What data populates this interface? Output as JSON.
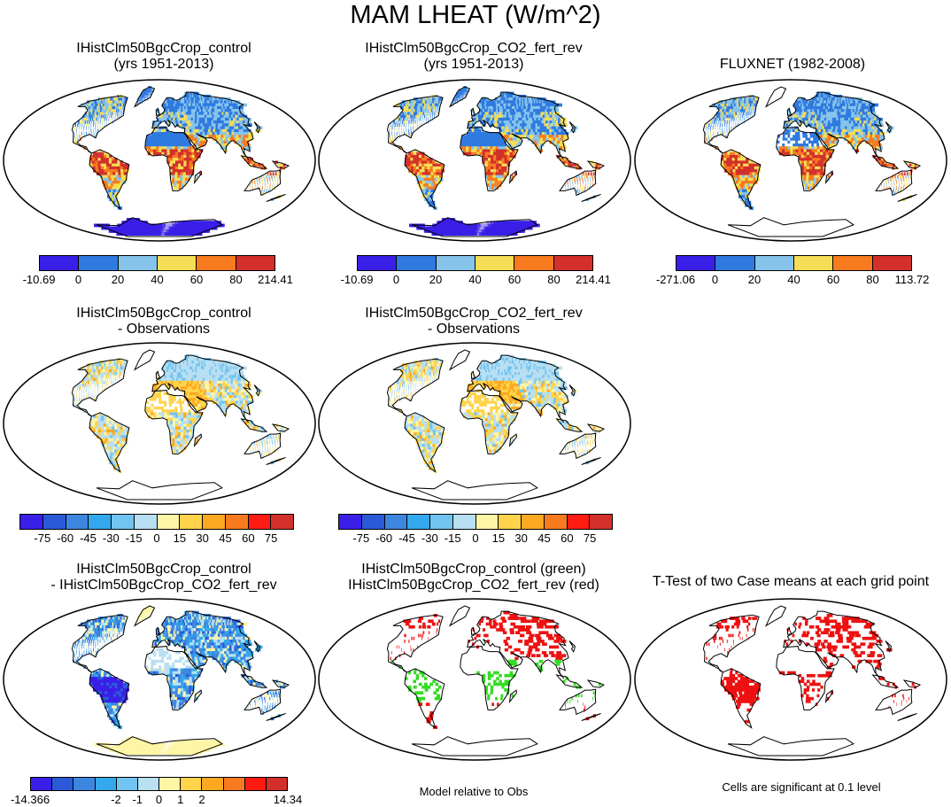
{
  "main_title": "MAM LHEAT (W/m^2)",
  "colors": {
    "abs_scale": [
      "#3a1fe8",
      "#2f7ae0",
      "#86c4ec",
      "#f5dd55",
      "#f77b1e",
      "#d3302b"
    ],
    "diff_scale": [
      "#3a1fe8",
      "#2b5ad8",
      "#3d86e0",
      "#34a8ec",
      "#72c4f0",
      "#b8dff2",
      "#fff5a6",
      "#ffd44a",
      "#fca921",
      "#f77b1e",
      "#ff1a12",
      "#d3302b"
    ],
    "cmp_scale": [
      "#3a1fe8",
      "#2b5ad8",
      "#3d86e0",
      "#34a8ec",
      "#72c4f0",
      "#b8dff2",
      "#fff5a6",
      "#ffd44a",
      "#fca921",
      "#f77b1e",
      "#ff1a12",
      "#d3302b"
    ],
    "control_sig": "#33dd22",
    "co2_sig": "#ee1111"
  },
  "panels": [
    {
      "title": "IHistClm50BgcCrop_control",
      "subtitle": "(yrs 1951-2013)"
    },
    {
      "title": "IHistClm50BgcCrop_CO2_fert_rev",
      "subtitle": "(yrs 1951-2013)"
    },
    {
      "title": "FLUXNET (1982-2008)",
      "subtitle": ""
    },
    {
      "title": "IHistClm50BgcCrop_control",
      "subtitle": "- Observations"
    },
    {
      "title": "IHistClm50BgcCrop_CO2_fert_rev",
      "subtitle": "- Observations"
    },
    {
      "title": "IHistClm50BgcCrop_control",
      "subtitle": "- IHistClm50BgcCrop_CO2_fert_rev"
    },
    {
      "title": "IHistClm50BgcCrop_control (green)",
      "subtitle": "IHistClm50BgcCrop_CO2_fert_rev (red)"
    },
    {
      "title": "T-Test of two Case means at each grid point",
      "subtitle": ""
    }
  ],
  "notes": {
    "model_relative": "Model relative to Obs",
    "significance": "Cells are significant at 0.1 level"
  },
  "chart_data": [
    {
      "type": "heatmap",
      "title": "IHistClm50BgcCrop_control (yrs 1951-2013)",
      "legend_labels": [
        "-10.69",
        "0",
        "20",
        "40",
        "60",
        "80",
        "214.41"
      ],
      "levels": [
        -10.69,
        0,
        20,
        40,
        60,
        80,
        214.41
      ]
    },
    {
      "type": "heatmap",
      "title": "IHistClm50BgcCrop_CO2_fert_rev (yrs 1951-2013)",
      "legend_labels": [
        "-10.69",
        "0",
        "20",
        "40",
        "60",
        "80",
        "214.41"
      ],
      "levels": [
        -10.69,
        0,
        20,
        40,
        60,
        80,
        214.41
      ]
    },
    {
      "type": "heatmap",
      "title": "FLUXNET (1982-2008)",
      "legend_labels": [
        "-271.06",
        "0",
        "20",
        "40",
        "60",
        "80",
        "113.72"
      ],
      "levels": [
        -271.06,
        0,
        20,
        40,
        60,
        80,
        113.72
      ]
    },
    {
      "type": "heatmap",
      "title": "IHistClm50BgcCrop_control - Observations",
      "legend_labels": [
        "-75",
        "-60",
        "-45",
        "-30",
        "-15",
        "0",
        "15",
        "30",
        "45",
        "60",
        "75"
      ],
      "levels": [
        -75,
        -60,
        -45,
        -30,
        -15,
        0,
        15,
        30,
        45,
        60,
        75
      ]
    },
    {
      "type": "heatmap",
      "title": "IHistClm50BgcCrop_CO2_fert_rev - Observations",
      "legend_labels": [
        "-75",
        "-60",
        "-45",
        "-30",
        "-15",
        "0",
        "15",
        "30",
        "45",
        "60",
        "75"
      ],
      "levels": [
        -75,
        -60,
        -45,
        -30,
        -15,
        0,
        15,
        30,
        45,
        60,
        75
      ]
    },
    {
      "type": "heatmap",
      "title": "IHistClm50BgcCrop_control - IHistClm50BgcCrop_CO2_fert_rev",
      "legend_labels": [
        "-14.366",
        "-2",
        "-1",
        "0",
        "1",
        "2",
        "14.34"
      ],
      "levels": [
        -14.366,
        -2,
        -1,
        0,
        1,
        2,
        14.34
      ]
    },
    {
      "type": "heatmap",
      "title": "IHistClm50BgcCrop_control (green) IHistClm50BgcCrop_CO2_fert_rev (red)",
      "legend_labels": [],
      "levels": []
    },
    {
      "type": "heatmap",
      "title": "T-Test of two Case means at each grid point",
      "legend_labels": [],
      "levels": []
    }
  ]
}
